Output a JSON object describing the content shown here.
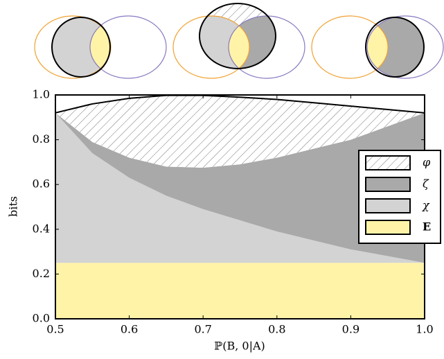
{
  "chart_data": {
    "type": "stacked-area",
    "x_label": "ℙ(B, 0|A)",
    "y_label": "bits",
    "x": [
      0.5,
      0.55,
      0.6,
      0.65,
      0.7,
      0.75,
      0.8,
      0.85,
      0.9,
      0.95,
      1.0
    ],
    "series": [
      {
        "name": "E",
        "color": "#fff3a8",
        "values": [
          0.25,
          0.25,
          0.25,
          0.25,
          0.25,
          0.25,
          0.25,
          0.25,
          0.25,
          0.25,
          0.25
        ]
      },
      {
        "name": "χ",
        "color": "#d3d3d3",
        "values": [
          0.67,
          0.49,
          0.38,
          0.3,
          0.24,
          0.19,
          0.14,
          0.1,
          0.06,
          0.03,
          0
        ]
      },
      {
        "name": "ζ",
        "color": "#a9a9a9",
        "values": [
          0,
          0.05,
          0.09,
          0.13,
          0.185,
          0.25,
          0.33,
          0.41,
          0.49,
          0.58,
          0.67
        ]
      },
      {
        "name": "φ",
        "color": "hatch",
        "values": [
          0,
          0.17,
          0.265,
          0.318,
          0.323,
          0.3,
          0.26,
          0.205,
          0.15,
          0.075,
          0
        ]
      }
    ],
    "xlim": [
      0.5,
      1.0
    ],
    "xticks": [
      0.5,
      0.6,
      0.7,
      0.8,
      0.9,
      {
        "value": 1.0,
        "label": "1.0"
      }
    ],
    "ylim": [
      0,
      1.0
    ],
    "yticks": [
      {
        "value": 0,
        "label": "0.0"
      },
      0.2,
      0.4,
      0.6,
      0.8,
      {
        "value": 1.0,
        "label": "1.0"
      }
    ],
    "legend": "right"
  }
}
